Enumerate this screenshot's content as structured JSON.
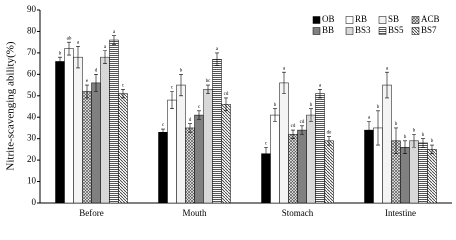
{
  "chart_data": {
    "type": "bar",
    "y_label": "Nitrite-scavenging ability(%)",
    "categories": [
      "Before",
      "Mouth",
      "Stomach",
      "Intestine"
    ],
    "ylim": [
      0,
      90
    ],
    "yticks": [
      0,
      10,
      20,
      30,
      40,
      50,
      60,
      70,
      80,
      90
    ],
    "legend": "top-right",
    "series": [
      {
        "name": "OB",
        "color": "#000000",
        "pattern": "solid",
        "values": [
          66,
          33,
          23,
          34
        ],
        "errors": [
          2,
          1.5,
          3,
          4
        ],
        "letters": [
          "b",
          "c",
          "c",
          "a"
        ]
      },
      {
        "name": "RB",
        "color": "#ffffff",
        "pattern": "solid",
        "values": [
          72,
          48,
          41,
          35
        ],
        "errors": [
          3,
          4,
          3,
          8
        ],
        "letters": [
          "ab",
          "c",
          "b",
          "b"
        ]
      },
      {
        "name": "SB",
        "color": "#f4f4f4",
        "pattern": "solid",
        "values": [
          68,
          55,
          56,
          55
        ],
        "errors": [
          5,
          5,
          5,
          6
        ],
        "letters": [
          "a",
          "b",
          "a",
          "a"
        ]
      },
      {
        "name": "ACB",
        "color": "#555555",
        "pattern": "crosshatch",
        "values": [
          52,
          35,
          32,
          29
        ],
        "errors": [
          3,
          2,
          2,
          6
        ],
        "letters": [
          "e",
          "d",
          "cd",
          "b"
        ]
      },
      {
        "name": "BB",
        "color": "#808080",
        "pattern": "solid",
        "values": [
          56,
          41,
          34,
          26
        ],
        "errors": [
          4,
          2,
          2,
          3
        ],
        "letters": [
          "d",
          "c",
          "cd",
          "b"
        ]
      },
      {
        "name": "BS3",
        "color": "#777777",
        "pattern": "dots",
        "values": [
          68,
          53,
          41,
          29
        ],
        "errors": [
          3,
          2,
          3,
          3
        ],
        "letters": [
          "a",
          "bc",
          "b",
          "b"
        ]
      },
      {
        "name": "BS5",
        "color": "#555555",
        "pattern": "hstripes",
        "values": [
          76,
          67,
          51,
          28
        ],
        "errors": [
          2,
          3,
          2,
          2
        ],
        "letters": [
          "a",
          "a",
          "a",
          "b"
        ]
      },
      {
        "name": "BS7",
        "color": "#333333",
        "pattern": "diagonal",
        "values": [
          51,
          46,
          29,
          25
        ],
        "errors": [
          2,
          3,
          2,
          2
        ],
        "letters": [
          "c",
          "cd",
          "de",
          "b"
        ]
      }
    ]
  }
}
